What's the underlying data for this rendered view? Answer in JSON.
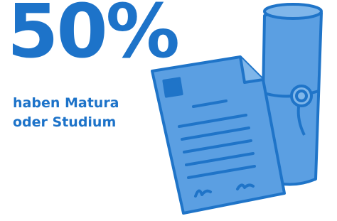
{
  "headline": "50%",
  "caption_lines": [
    "haben Matura",
    "oder Studium"
  ]
}
